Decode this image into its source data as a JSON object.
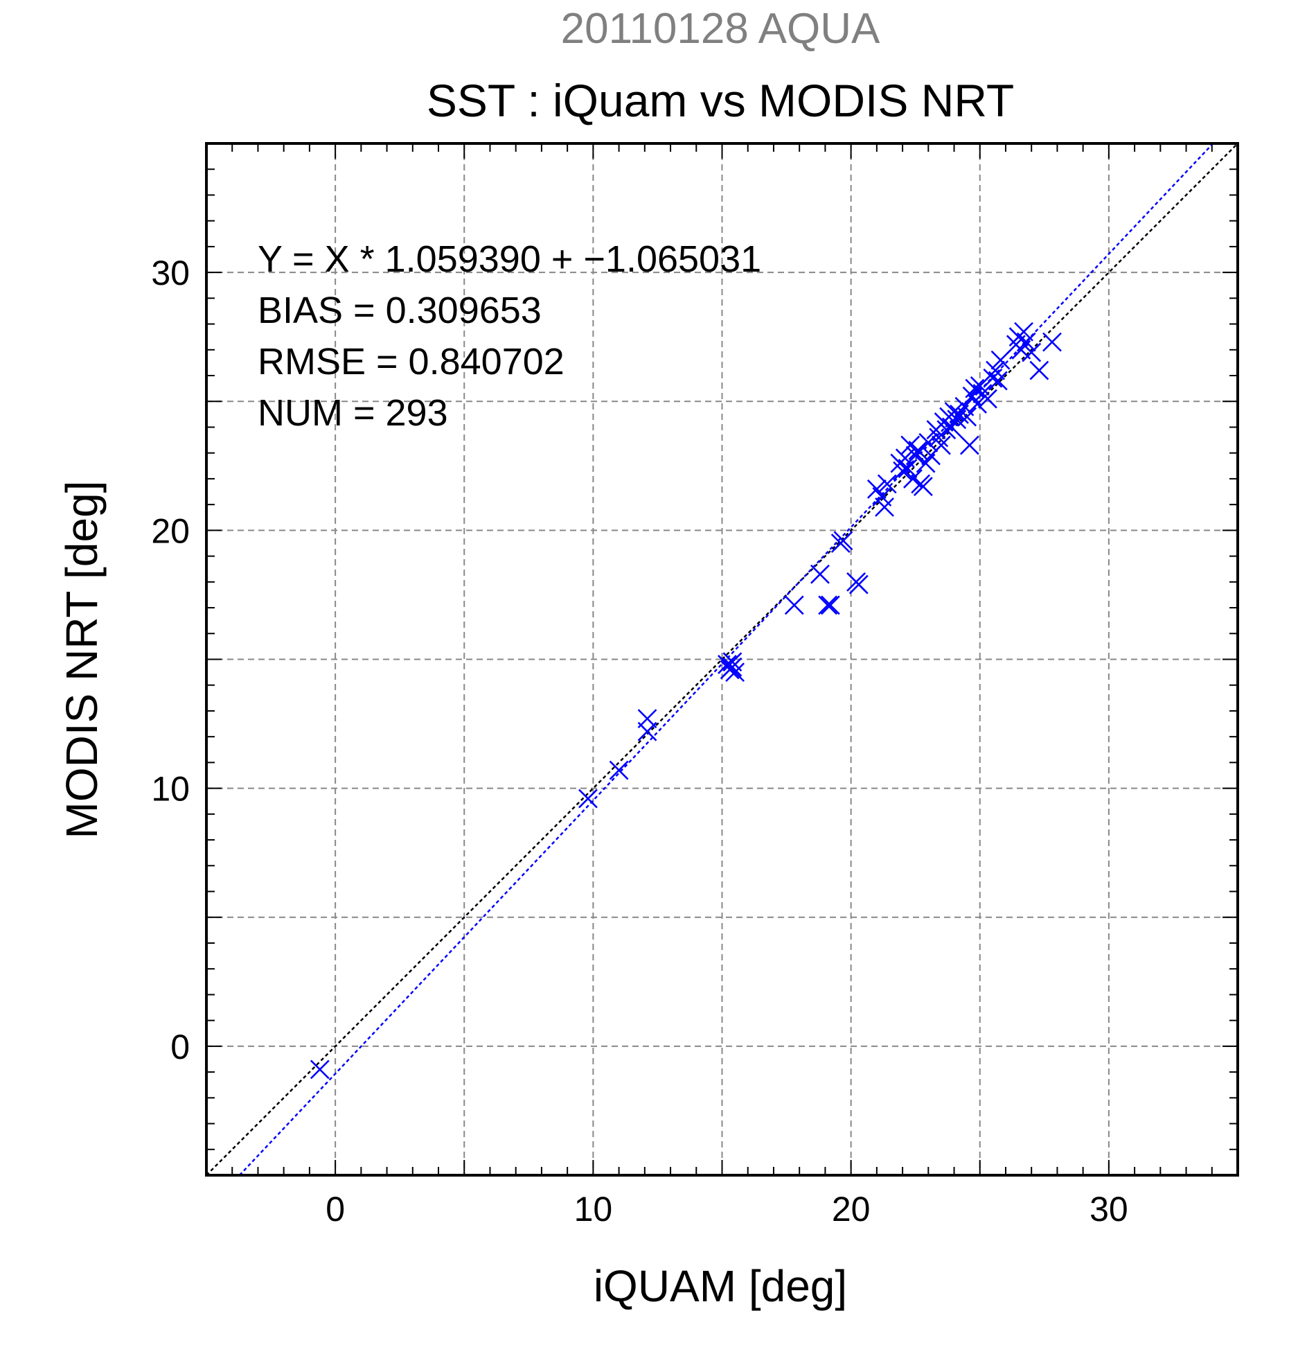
{
  "chart_data": {
    "type": "scatter",
    "title": "20110128 AQUA",
    "subtitle": "SST : iQuam vs MODIS NRT",
    "xlabel": "iQUAM [deg]",
    "ylabel": "MODIS NRT [deg]",
    "xlim": [
      -5,
      35
    ],
    "ylim": [
      -5,
      35
    ],
    "x_ticks": [
      0,
      10,
      20,
      30
    ],
    "y_ticks": [
      0,
      10,
      20,
      30
    ],
    "x_minor_step": 1,
    "y_minor_step": 1,
    "grid": true,
    "grid_step": 5,
    "annotations": [
      "Y = X * 1.059390 + −1.065031",
      "BIAS = 0.309653",
      "RMSE = 0.840702",
      "NUM = 293"
    ],
    "reference_lines": [
      {
        "name": "1:1 line",
        "slope": 1.0,
        "intercept": 0.0,
        "color": "#000000",
        "style": "dotted"
      },
      {
        "name": "fit line",
        "slope": 1.05939,
        "intercept": -1.065031,
        "color": "#0000ff",
        "style": "dotted"
      }
    ],
    "series": [
      {
        "marker": "x",
        "color": "#0000ff",
        "points": [
          [
            -0.6,
            -0.9
          ],
          [
            9.8,
            9.6
          ],
          [
            11.0,
            10.7
          ],
          [
            12.1,
            12.2
          ],
          [
            12.1,
            12.7
          ],
          [
            15.2,
            14.8
          ],
          [
            15.3,
            14.6
          ],
          [
            15.4,
            14.7
          ],
          [
            15.5,
            14.5
          ],
          [
            15.4,
            14.9
          ],
          [
            17.8,
            17.1
          ],
          [
            18.8,
            18.3
          ],
          [
            19.1,
            17.1
          ],
          [
            19.2,
            17.1
          ],
          [
            19.6,
            19.5
          ],
          [
            19.7,
            19.6
          ],
          [
            20.2,
            18.0
          ],
          [
            20.3,
            17.9
          ],
          [
            21.0,
            21.6
          ],
          [
            21.2,
            21.3
          ],
          [
            21.3,
            20.9
          ],
          [
            21.4,
            21.8
          ],
          [
            21.9,
            22.6
          ],
          [
            22.0,
            22.3
          ],
          [
            22.1,
            22.8
          ],
          [
            22.2,
            22.4
          ],
          [
            22.3,
            23.3
          ],
          [
            22.4,
            22.0
          ],
          [
            22.5,
            22.9
          ],
          [
            22.6,
            23.1
          ],
          [
            22.7,
            21.8
          ],
          [
            22.8,
            21.7
          ],
          [
            22.9,
            22.6
          ],
          [
            23.0,
            23.4
          ],
          [
            23.1,
            22.9
          ],
          [
            23.3,
            23.9
          ],
          [
            23.4,
            23.6
          ],
          [
            23.5,
            23.3
          ],
          [
            23.6,
            24.2
          ],
          [
            23.7,
            23.9
          ],
          [
            23.8,
            24.4
          ],
          [
            23.9,
            24.0
          ],
          [
            24.0,
            24.6
          ],
          [
            24.1,
            24.3
          ],
          [
            24.2,
            24.5
          ],
          [
            24.4,
            24.8
          ],
          [
            24.5,
            24.4
          ],
          [
            24.6,
            23.3
          ],
          [
            24.7,
            25.2
          ],
          [
            24.8,
            25.5
          ],
          [
            24.9,
            24.9
          ],
          [
            25.0,
            25.6
          ],
          [
            25.1,
            25.3
          ],
          [
            25.3,
            25.1
          ],
          [
            25.5,
            25.9
          ],
          [
            25.6,
            26.2
          ],
          [
            25.7,
            25.8
          ],
          [
            25.8,
            26.6
          ],
          [
            26.4,
            27.2
          ],
          [
            26.5,
            27.5
          ],
          [
            26.6,
            27.0
          ],
          [
            26.7,
            27.7
          ],
          [
            26.8,
            27.3
          ],
          [
            27.0,
            26.9
          ],
          [
            27.3,
            26.2
          ],
          [
            27.8,
            27.3
          ]
        ]
      }
    ]
  }
}
